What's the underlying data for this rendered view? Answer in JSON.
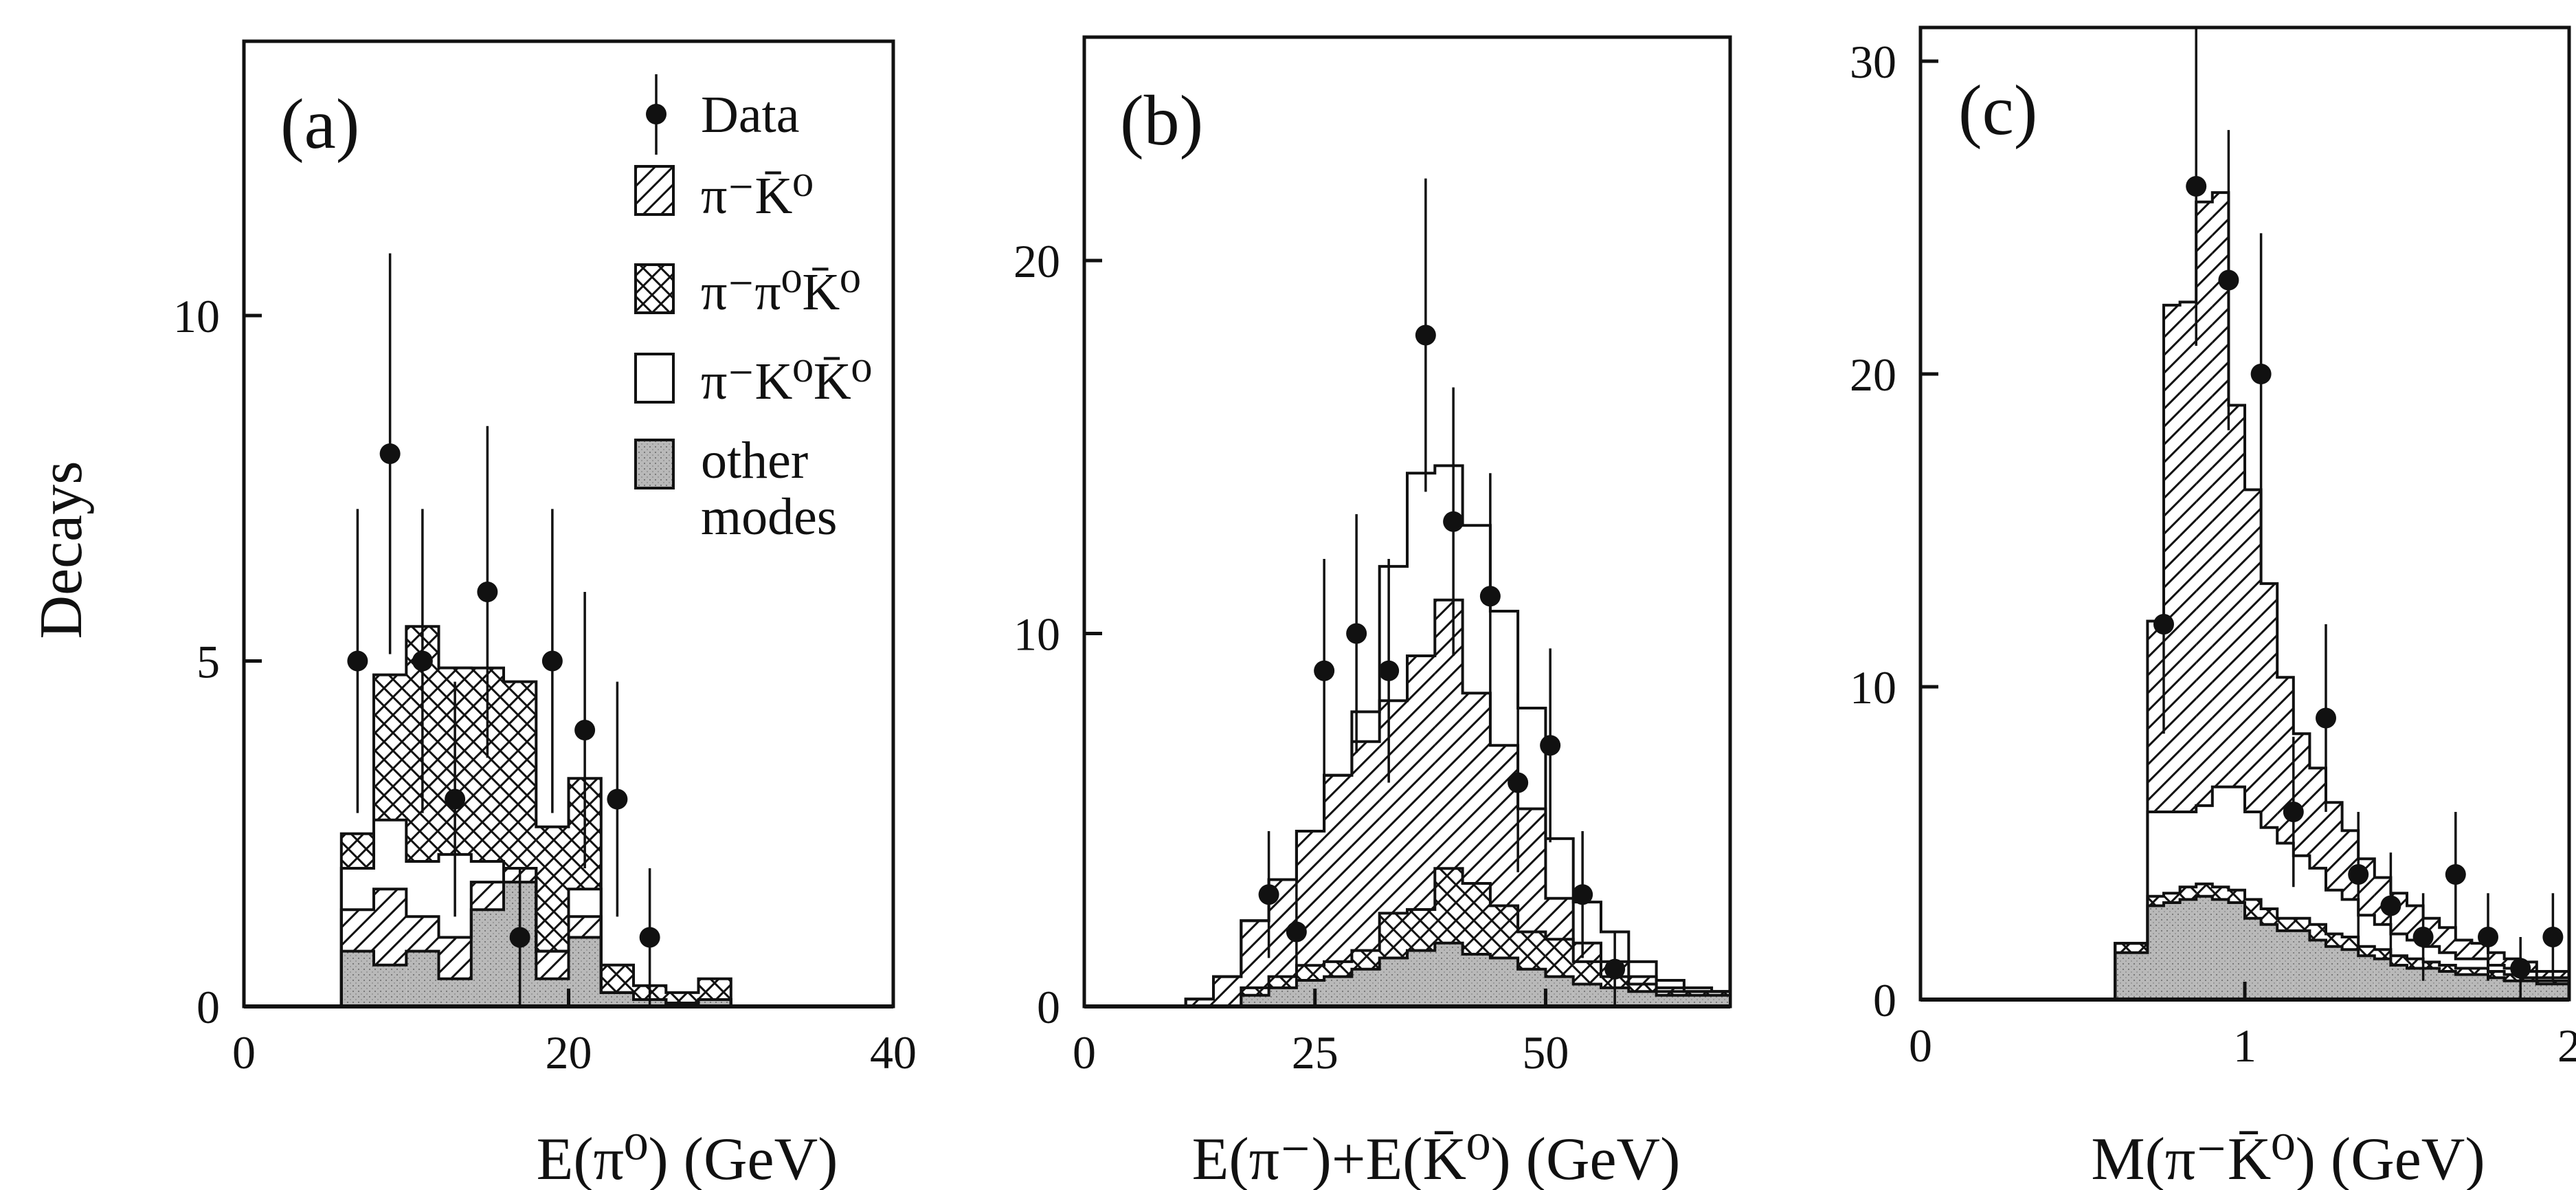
{
  "chart_data": [
    {
      "type": "bar",
      "panel_label": "(a)",
      "xlabel": "E(π⁰) (GeV)",
      "ylabel": "Decays",
      "xlim": [
        0,
        40
      ],
      "ylim": [
        0,
        13
      ],
      "xticks": [
        0,
        20,
        40
      ],
      "yticks": [
        0,
        5,
        10
      ],
      "grid": false,
      "legend": {
        "placement": "top-right",
        "entries": [
          {
            "label": "Data",
            "marker": "point-with-error-bar"
          },
          {
            "label": "π⁻K̄⁰",
            "pattern": "diagonal-hatch"
          },
          {
            "label": "π⁻π⁰K̄⁰",
            "pattern": "cross-hatch"
          },
          {
            "label": "π⁻K⁰K̄⁰",
            "pattern": "open"
          },
          {
            "label": "other modes",
            "pattern": "gray-dots"
          }
        ]
      },
      "bin_edges": [
        6,
        8,
        10,
        12,
        14,
        16,
        18,
        20,
        22,
        24,
        26,
        28,
        30
      ],
      "stack": {
        "other modes": [
          0.8,
          0.6,
          0.8,
          0.4,
          1.4,
          1.8,
          0.4,
          1.0,
          0.2,
          0.1,
          0.05,
          0.1
        ],
        "π⁻K̄⁰": [
          0.6,
          1.1,
          0.5,
          0.6,
          0.4,
          0.2,
          0.4,
          0.3,
          0.0,
          0.0,
          0.0,
          0.0
        ],
        "π⁻K⁰K̄⁰": [
          0.6,
          1.0,
          0.8,
          1.2,
          0.3,
          0.0,
          0.0,
          0.4,
          0.0,
          0.0,
          0.0,
          0.0
        ],
        "π⁻π⁰K̄⁰": [
          0.5,
          2.1,
          3.4,
          2.7,
          2.8,
          2.7,
          1.8,
          1.6,
          0.4,
          0.2,
          0.15,
          0.3
        ]
      },
      "data_points": [
        {
          "x": 7,
          "y": 5,
          "err": 2.2
        },
        {
          "x": 9,
          "y": 8,
          "err": 2.9
        },
        {
          "x": 11,
          "y": 5,
          "err": 2.2
        },
        {
          "x": 13,
          "y": 3,
          "err": 1.7
        },
        {
          "x": 15,
          "y": 6,
          "err": 2.4
        },
        {
          "x": 17,
          "y": 1,
          "err": 1.0
        },
        {
          "x": 19,
          "y": 5,
          "err": 2.2
        },
        {
          "x": 21,
          "y": 4,
          "err": 2.0
        },
        {
          "x": 23,
          "y": 3,
          "err": 1.7
        },
        {
          "x": 25,
          "y": 1,
          "err": 1.0
        }
      ]
    },
    {
      "type": "bar",
      "panel_label": "(b)",
      "xlabel": "E(π⁻)+E(K̄⁰) (GeV)",
      "ylabel": "",
      "xlim": [
        0,
        70
      ],
      "ylim": [
        0,
        25
      ],
      "xticks": [
        0,
        25,
        50
      ],
      "yticks": [
        0,
        10,
        20
      ],
      "grid": false,
      "bin_edges": [
        11,
        14,
        17,
        20,
        23,
        26,
        29,
        32,
        35,
        38,
        41,
        44,
        47,
        50,
        53,
        56,
        59,
        62,
        65,
        68,
        70
      ],
      "stack": {
        "other modes": [
          0.0,
          0.0,
          0.3,
          0.5,
          0.7,
          0.8,
          1.0,
          1.3,
          1.5,
          1.7,
          1.4,
          1.3,
          1.0,
          0.8,
          0.6,
          0.5,
          0.4,
          0.3,
          0.3,
          0.3
        ],
        "π⁻π⁰K̄⁰": [
          0.0,
          0.0,
          0.2,
          0.3,
          0.4,
          0.4,
          0.5,
          1.2,
          1.1,
          2.0,
          1.9,
          1.4,
          1.0,
          1.0,
          0.6,
          0.3,
          0.2,
          0.1,
          0.1,
          0.1
        ],
        "π⁻K̄⁰": [
          0.2,
          0.8,
          1.8,
          2.6,
          3.6,
          5.0,
          5.6,
          5.7,
          6.8,
          7.2,
          5.1,
          4.3,
          3.3,
          1.1,
          0.5,
          0.4,
          0.2,
          0.1,
          0.0,
          0.0
        ],
        "π⁻K⁰K̄⁰": [
          0.0,
          0.0,
          0.0,
          0.0,
          0.0,
          0.0,
          0.8,
          3.6,
          4.9,
          3.6,
          4.5,
          3.6,
          2.7,
          1.6,
          1.1,
          0.8,
          0.4,
          0.2,
          0.1,
          0.0
        ]
      },
      "data_points": [
        {
          "x": 20,
          "y": 3,
          "err": 1.7
        },
        {
          "x": 23,
          "y": 2,
          "err": 1.4
        },
        {
          "x": 26,
          "y": 9,
          "err": 3.0
        },
        {
          "x": 29.5,
          "y": 10,
          "err": 3.2
        },
        {
          "x": 33,
          "y": 9,
          "err": 3.0
        },
        {
          "x": 37,
          "y": 18,
          "err": 4.2
        },
        {
          "x": 40,
          "y": 13,
          "err": 3.6
        },
        {
          "x": 44,
          "y": 11,
          "err": 3.3
        },
        {
          "x": 47,
          "y": 6,
          "err": 2.4
        },
        {
          "x": 50.5,
          "y": 7,
          "err": 2.6
        },
        {
          "x": 54,
          "y": 3,
          "err": 1.7
        },
        {
          "x": 57.5,
          "y": 1,
          "err": 1.0
        }
      ]
    },
    {
      "type": "bar",
      "panel_label": "(c)",
      "xlabel": "M(π⁻K̄⁰) (GeV)",
      "ylabel": "",
      "xlim": [
        0,
        2
      ],
      "ylim": [
        0,
        33
      ],
      "xticks": [
        0,
        1,
        2
      ],
      "yticks": [
        0,
        10,
        20,
        30
      ],
      "grid": false,
      "bin_edges": [
        0.6,
        0.7,
        0.75,
        0.8,
        0.85,
        0.9,
        0.95,
        1.0,
        1.05,
        1.1,
        1.15,
        1.2,
        1.25,
        1.3,
        1.35,
        1.4,
        1.45,
        1.5,
        1.55,
        1.6,
        1.65,
        1.7,
        1.75,
        1.8,
        1.85,
        1.9,
        1.95,
        2.0
      ],
      "stack": {
        "other modes": [
          1.5,
          3.0,
          3.1,
          3.2,
          3.3,
          3.2,
          3.1,
          2.6,
          2.4,
          2.2,
          2.2,
          1.9,
          1.7,
          1.6,
          1.4,
          1.3,
          1.1,
          1.0,
          1.0,
          0.9,
          0.8,
          0.8,
          0.7,
          0.6,
          0.6,
          0.5,
          0.5
        ],
        "π⁻π⁰K̄⁰": [
          0.3,
          0.3,
          0.3,
          0.4,
          0.4,
          0.4,
          0.4,
          0.6,
          0.5,
          0.4,
          0.4,
          0.5,
          0.4,
          0.4,
          0.3,
          0.3,
          0.3,
          0.3,
          0.2,
          0.2,
          0.2,
          0.2,
          0.2,
          0.2,
          0.1,
          0.1,
          0.1
        ],
        "π⁻K⁰K̄⁰": [
          0.0,
          2.7,
          2.6,
          2.4,
          2.5,
          3.2,
          3.3,
          2.8,
          2.6,
          2.4,
          2.0,
          1.8,
          1.4,
          1.2,
          1.0,
          0.8,
          0.7,
          0.6,
          0.5,
          0.4,
          0.3,
          0.3,
          0.2,
          0.2,
          0.2,
          0.1,
          0.1
        ],
        "π⁻K̄⁰": [
          0.0,
          6.1,
          16.2,
          16.3,
          19.3,
          19.0,
          12.2,
          10.3,
          7.8,
          5.3,
          3.9,
          3.2,
          2.8,
          2.2,
          1.8,
          1.5,
          1.3,
          1.1,
          0.9,
          0.8,
          0.6,
          0.5,
          0.4,
          0.3,
          0.3,
          0.2,
          0.2
        ]
      },
      "data_points": [
        {
          "x": 0.75,
          "y": 12,
          "err": 3.5
        },
        {
          "x": 0.85,
          "y": 26,
          "err": 5.1
        },
        {
          "x": 0.95,
          "y": 23,
          "err": 4.8
        },
        {
          "x": 1.05,
          "y": 20,
          "err": 4.5
        },
        {
          "x": 1.15,
          "y": 6,
          "err": 2.4
        },
        {
          "x": 1.25,
          "y": 9,
          "err": 3.0
        },
        {
          "x": 1.35,
          "y": 4,
          "err": 2.0
        },
        {
          "x": 1.45,
          "y": 3,
          "err": 1.7
        },
        {
          "x": 1.55,
          "y": 2,
          "err": 1.4
        },
        {
          "x": 1.65,
          "y": 4,
          "err": 2.0
        },
        {
          "x": 1.75,
          "y": 2,
          "err": 1.4
        },
        {
          "x": 1.85,
          "y": 1,
          "err": 1.0
        },
        {
          "x": 1.95,
          "y": 2,
          "err": 1.4
        }
      ]
    }
  ]
}
